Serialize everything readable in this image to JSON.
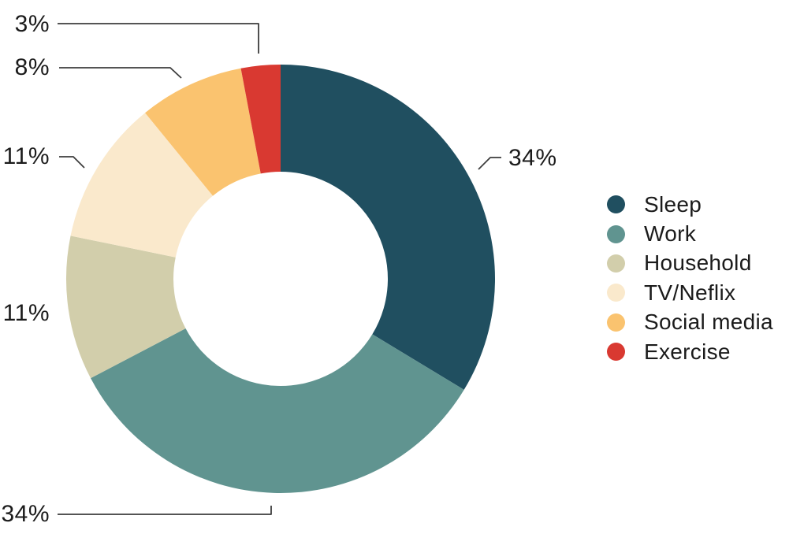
{
  "figure": {
    "background": "#ffffff",
    "text_color": "#1b1b1b",
    "leader_line_color": "#3d3d3d"
  },
  "chart_data": {
    "type": "pie",
    "subtype": "donut",
    "title": "",
    "legend_position": "right",
    "direction": "clockwise",
    "start_angle_deg": 0,
    "inner_radius_ratio": 0.5,
    "unit": "%",
    "categories": [
      "Sleep",
      "Work",
      "Household",
      "TV/Neflix",
      "Social media",
      "Exercise"
    ],
    "values": [
      34,
      34,
      11,
      11,
      8,
      3
    ],
    "slices": [
      {
        "name": "Sleep",
        "value": 34,
        "pct_label": "34%",
        "color": "#204f60"
      },
      {
        "name": "Work",
        "value": 34,
        "pct_label": "34%",
        "color": "#609490"
      },
      {
        "name": "Household",
        "value": 11,
        "pct_label": "11%",
        "color": "#d2ceab"
      },
      {
        "name": "TV/Neflix",
        "value": 11,
        "pct_label": "11%",
        "color": "#fae9cc"
      },
      {
        "name": "Social media",
        "value": 8,
        "pct_label": "8%",
        "color": "#fac36f"
      },
      {
        "name": "Exercise",
        "value": 3,
        "pct_label": "3%",
        "color": "#d93931"
      }
    ]
  }
}
